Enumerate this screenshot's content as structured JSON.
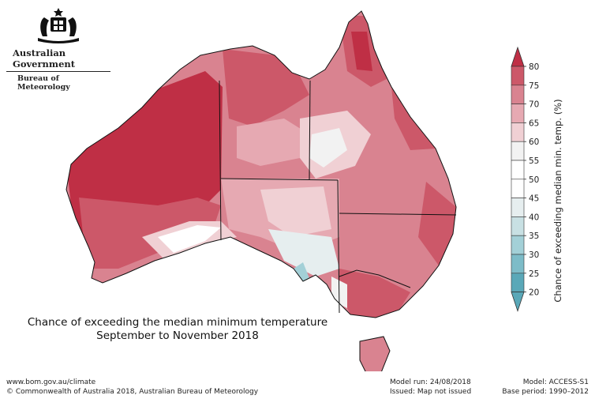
{
  "header": {
    "government": "Australian Government",
    "bureau": "Bureau of Meteorology",
    "crest_icon": "commonwealth-coat-of-arms-icon"
  },
  "map": {
    "caption_line1": "Chance of exceeding the median minimum temperature",
    "caption_line2": "September to November 2018",
    "region": "Australia",
    "colors": {
      "c20": "#5aa8b8",
      "c25": "#7dbcc8",
      "c30": "#a3d0d7",
      "c35": "#c8e0e3",
      "c40": "#e6eeef",
      "c45": "#ffffff",
      "c50": "#ffffff",
      "c55": "#f2f2f2",
      "c60": "#f0d0d4",
      "c65": "#e6a9b2",
      "c70": "#d98390",
      "c75": "#cc5869",
      "c80": "#bf2f45"
    }
  },
  "legend": {
    "title": "Chance of exceeding median min. temp. (%)",
    "ticks": [
      "20",
      "25",
      "30",
      "35",
      "40",
      "45",
      "50",
      "55",
      "60",
      "65",
      "70",
      "75",
      "80"
    ],
    "band_colors": [
      "#5aa8b8",
      "#7dbcc8",
      "#a3d0d7",
      "#c8e0e3",
      "#e6eeef",
      "#ffffff",
      "#ffffff",
      "#f2f2f2",
      "#f0d0d4",
      "#e6a9b2",
      "#d98390",
      "#cc5869"
    ],
    "top_arrow_color": "#bf2f45",
    "bottom_arrow_color": "#5aa8b8"
  },
  "footer": {
    "url": "www.bom.gov.au/climate",
    "copyright": "© Commonwealth of Australia 2018, Australian Bureau of Meteorology",
    "model_run": "Model run: 24/08/2018",
    "issued": "Issued: Map not issued",
    "model": "Model: ACCESS-S1",
    "base_period": "Base period: 1990–2012"
  }
}
